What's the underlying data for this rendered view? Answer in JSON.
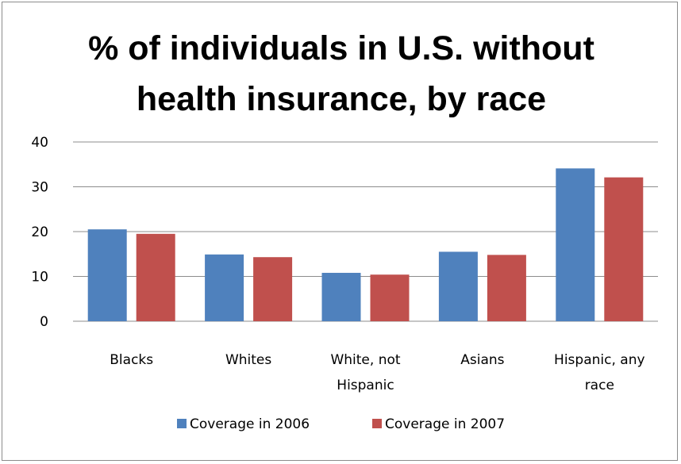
{
  "chart_data": {
    "type": "bar",
    "title_lines": [
      "% of individuals in U.S. without",
      "health insurance, by race"
    ],
    "categories": [
      [
        "Blacks"
      ],
      [
        "Whites"
      ],
      [
        "White, not",
        "Hispanic"
      ],
      [
        "Asians"
      ],
      [
        "Hispanic, any",
        "race"
      ]
    ],
    "series": [
      {
        "name": "Coverage in 2006",
        "color": "#4f81bd",
        "values": [
          20.5,
          14.9,
          10.8,
          15.5,
          34.1
        ]
      },
      {
        "name": "Coverage in 2007",
        "color": "#c0504d",
        "values": [
          19.5,
          14.3,
          10.4,
          14.8,
          32.1
        ]
      }
    ],
    "ylim": [
      0,
      40
    ],
    "yticks": [
      0,
      10,
      20,
      30,
      40
    ],
    "grid": true,
    "legend_position": "bottom"
  }
}
